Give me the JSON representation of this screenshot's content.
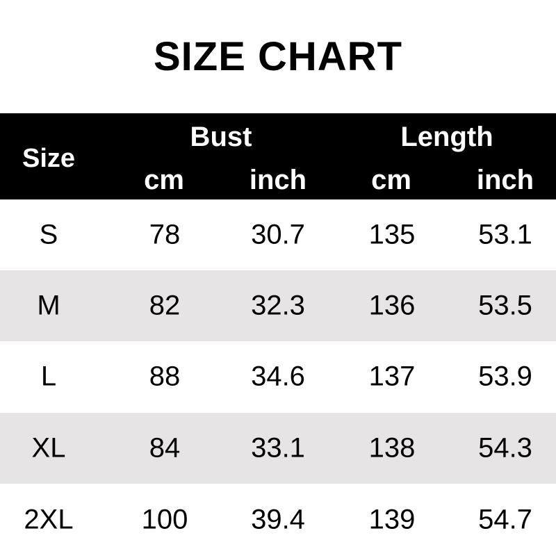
{
  "title": "SIZE CHART",
  "header": {
    "size": "Size",
    "bust": "Bust",
    "length": "Length",
    "bust_cm": "cm",
    "bust_inch": "inch",
    "length_cm": "cm",
    "length_inch": "inch"
  },
  "rows": [
    {
      "size": "S",
      "bust_cm": "78",
      "bust_inch": "30.7",
      "length_cm": "135",
      "length_inch": "53.1"
    },
    {
      "size": "M",
      "bust_cm": "82",
      "bust_inch": "32.3",
      "length_cm": "136",
      "length_inch": "53.5"
    },
    {
      "size": "L",
      "bust_cm": "88",
      "bust_inch": "34.6",
      "length_cm": "137",
      "length_inch": "53.9"
    },
    {
      "size": "XL",
      "bust_cm": "84",
      "bust_inch": "33.1",
      "length_cm": "138",
      "length_inch": "54.3"
    },
    {
      "size": "2XL",
      "bust_cm": "100",
      "bust_inch": "39.4",
      "length_cm": "139",
      "length_inch": "54.7"
    }
  ],
  "colors": {
    "header_bg": "#000000",
    "alt_row": "#e6e4e4"
  }
}
